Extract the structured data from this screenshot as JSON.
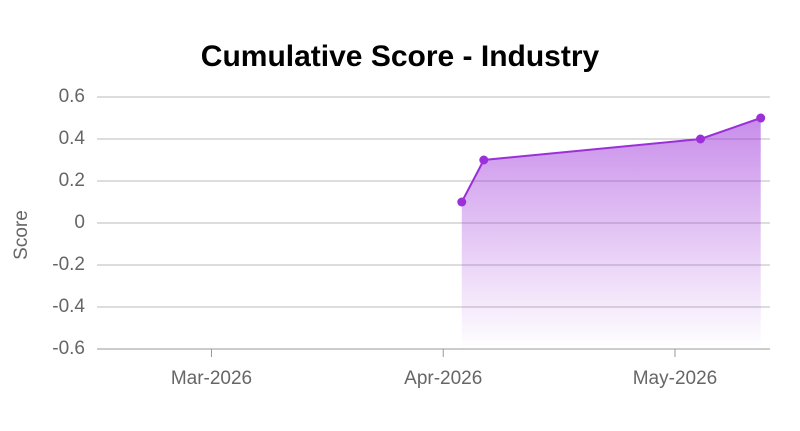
{
  "chart_data": {
    "type": "area",
    "title": "Cumulative Score - Industry",
    "y_label": "Score",
    "x": [
      4.08,
      4.175,
      5.11,
      5.37
    ],
    "series": [
      {
        "name": "Industry",
        "color": "#9b30d9",
        "values": [
          0.1,
          0.3,
          0.4,
          0.5
        ]
      }
    ],
    "xlim": [
      2.506,
      5.41
    ],
    "xticks": [
      {
        "value": 3,
        "label": "Mar-2026"
      },
      {
        "value": 4,
        "label": "Apr-2026"
      },
      {
        "value": 5,
        "label": "May-2026"
      }
    ],
    "ylim": [
      -0.6,
      0.6
    ],
    "yticks": [
      -0.6,
      -0.4,
      -0.2,
      0,
      0.2,
      0.4,
      0.6
    ],
    "grid": true
  }
}
